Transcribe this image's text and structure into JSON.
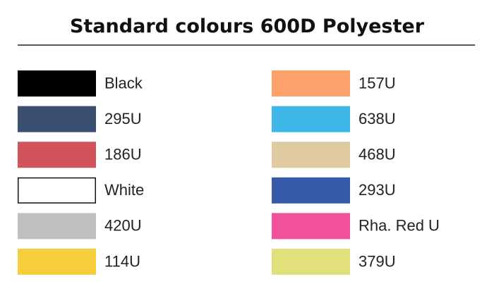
{
  "title": "Standard colours 600D Polyester",
  "columns": [
    [
      {
        "label": "Black",
        "color": "#000000"
      },
      {
        "label": "295U",
        "color": "#3a4f70"
      },
      {
        "label": "186U",
        "color": "#d1545b"
      },
      {
        "label": "White",
        "color": "#ffffff"
      },
      {
        "label": "420U",
        "color": "#c0c0c0"
      },
      {
        "label": "114U",
        "color": "#f6cd3d"
      }
    ],
    [
      {
        "label": "157U",
        "color": "#fda06b"
      },
      {
        "label": "638U",
        "color": "#3fb7e6"
      },
      {
        "label": "468U",
        "color": "#dfcaa2"
      },
      {
        "label": "293U",
        "color": "#3659a8"
      },
      {
        "label": "Rha. Red U",
        "color": "#f0519a"
      },
      {
        "label": "379U",
        "color": "#e2e07b"
      }
    ]
  ]
}
